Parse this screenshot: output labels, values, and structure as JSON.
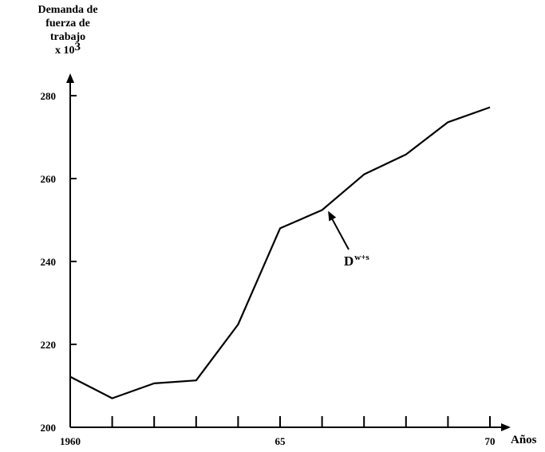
{
  "chart_data": {
    "type": "line",
    "ylabel": {
      "line1": "Demanda de",
      "line2": "fuerza de",
      "line3": "trabajo",
      "line4_prefix": "x 10",
      "line4_exp": "3"
    },
    "xlabel": "Años",
    "ylim": [
      200,
      283
    ],
    "y_ticks": [
      200,
      220,
      240,
      260,
      280
    ],
    "y_tick_labels": [
      "200",
      "220",
      "240",
      "260",
      "280"
    ],
    "x_ticks": [
      1960,
      1961,
      1962,
      1963,
      1964,
      1965,
      1966,
      1967,
      1968,
      1969,
      1970
    ],
    "x_tick_labels": [
      "1960",
      "",
      "",
      "",
      "",
      "65",
      "",
      "",
      "",
      "",
      "70"
    ],
    "xlim": [
      1960,
      1970.5
    ],
    "series": [
      {
        "name": "Dw+s",
        "x": [
          1960,
          1961,
          1962,
          1963,
          1964,
          1965,
          1966,
          1967,
          1968,
          1969,
          1970
        ],
        "values": [
          212.2,
          207.0,
          210.6,
          211.3,
          224.8,
          248.0,
          252.4,
          261.0,
          265.8,
          273.6,
          277.2
        ]
      }
    ],
    "annotation": {
      "base": "D",
      "sup": "w+s",
      "points_to_x": 1966.2
    },
    "grid": false
  }
}
